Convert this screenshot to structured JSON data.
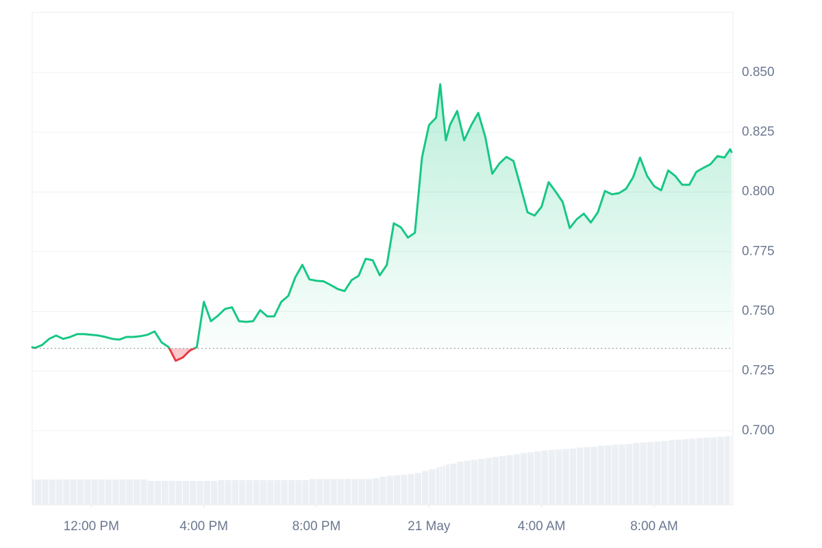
{
  "chart_data": {
    "type": "line",
    "color": "#16c784",
    "below_color": "#ea3943",
    "baseline": 0.7345,
    "grid": true,
    "x": [
      9.9,
      10,
      10.25,
      10.5,
      10.75,
      11,
      11.25,
      11.5,
      11.75,
      12,
      12.25,
      12.5,
      12.75,
      13,
      13.25,
      13.5,
      13.75,
      14,
      14.25,
      14.5,
      14.75,
      15,
      15.25,
      15.5,
      15.75,
      16,
      16.25,
      16.5,
      16.75,
      17,
      17.25,
      17.5,
      17.75,
      18,
      18.25,
      18.5,
      18.75,
      19,
      19.25,
      19.5,
      19.75,
      20,
      20.25,
      20.5,
      20.75,
      21,
      21.25,
      21.5,
      21.75,
      22,
      22.25,
      22.5,
      22.75,
      23,
      23.25,
      23.5,
      23.75,
      24,
      24.25,
      24.4,
      24.5,
      24.6,
      24.75,
      25,
      25.25,
      25.5,
      25.75,
      26,
      26.25,
      26.5,
      26.75,
      27,
      27.25,
      27.5,
      27.75,
      28,
      28.25,
      28.5,
      28.75,
      29,
      29.25,
      29.5,
      29.75,
      30,
      30.25,
      30.5,
      30.75,
      31,
      31.25,
      31.5,
      31.75,
      32,
      32.25,
      32.5,
      32.75,
      33,
      33.25,
      33.5,
      33.75,
      34,
      34.25,
      34.5,
      34.7,
      34.75
    ],
    "values": [
      0.735,
      0.7347,
      0.7359,
      0.7385,
      0.7399,
      0.7385,
      0.7393,
      0.7405,
      0.7405,
      0.7402,
      0.7399,
      0.7393,
      0.7385,
      0.7382,
      0.7393,
      0.7393,
      0.7396,
      0.7402,
      0.7416,
      0.737,
      0.735,
      0.7293,
      0.7307,
      0.7336,
      0.735,
      0.754,
      0.7459,
      0.7482,
      0.751,
      0.7517,
      0.7459,
      0.7456,
      0.7459,
      0.7505,
      0.7479,
      0.7479,
      0.754,
      0.7565,
      0.7643,
      0.7695,
      0.7634,
      0.7628,
      0.7626,
      0.7611,
      0.7594,
      0.7585,
      0.7631,
      0.7649,
      0.772,
      0.7714,
      0.7651,
      0.7694,
      0.7869,
      0.7852,
      0.7809,
      0.7829,
      0.8144,
      0.828,
      0.8311,
      0.8451,
      0.8328,
      0.8216,
      0.8282,
      0.8339,
      0.8216,
      0.8279,
      0.8331,
      0.823,
      0.8076,
      0.8119,
      0.8147,
      0.813,
      0.8024,
      0.7915,
      0.7901,
      0.7938,
      0.8041,
      0.8001,
      0.7958,
      0.7849,
      0.7886,
      0.7909,
      0.7872,
      0.7915,
      0.8004,
      0.799,
      0.7995,
      0.8013,
      0.8061,
      0.8144,
      0.8067,
      0.8024,
      0.8007,
      0.809,
      0.8067,
      0.803,
      0.803,
      0.8084,
      0.8101,
      0.8116,
      0.815,
      0.8144,
      0.8179,
      0.8167
    ],
    "volumes": [
      27,
      27,
      27,
      27,
      27,
      27,
      27,
      27,
      27,
      27,
      27,
      27,
      27,
      27,
      27,
      27,
      27,
      25.5,
      25.5,
      25.5,
      25.5,
      25.5,
      25.5,
      25.5,
      25.5,
      25.5,
      25.5,
      26.3,
      26.3,
      26.3,
      26.3,
      26.3,
      26.3,
      26.3,
      26.3,
      26.3,
      26.3,
      26.3,
      26.3,
      26.3,
      27.5,
      27.5,
      27.5,
      27.5,
      27.5,
      27.5,
      27.5,
      27.5,
      27.5,
      28.5,
      30,
      31,
      31.5,
      32,
      33,
      34,
      36,
      38,
      40,
      41,
      42,
      43,
      44,
      46,
      47,
      48,
      49,
      50,
      51,
      52,
      53,
      54,
      55,
      56,
      57,
      58,
      58.5,
      59,
      59.5,
      60,
      61,
      61.5,
      62,
      63,
      63.5,
      64,
      64.5,
      65,
      66,
      66.5,
      67,
      67.5,
      68,
      69,
      69.5,
      70,
      70.5,
      71,
      71.5,
      72,
      72.5,
      73,
      73,
      73
    ],
    "volume_color": "#eceff3",
    "volume_lim": [
      0,
      100
    ],
    "xlim": [
      9.9,
      34.8
    ],
    "xticks": [
      {
        "value": 12,
        "label": "12:00 PM"
      },
      {
        "value": 16,
        "label": "4:00 PM"
      },
      {
        "value": 20,
        "label": "8:00 PM"
      },
      {
        "value": 24,
        "label": "21 May"
      },
      {
        "value": 28,
        "label": "4:00 AM"
      },
      {
        "value": 32,
        "label": "8:00 AM"
      }
    ],
    "ylim": [
      0.669,
      0.8752
    ],
    "yticks": [
      {
        "value": 0.7,
        "label": "0.700"
      },
      {
        "value": 0.725,
        "label": "0.725"
      },
      {
        "value": 0.75,
        "label": "0.750"
      },
      {
        "value": 0.775,
        "label": "0.775"
      },
      {
        "value": 0.8,
        "label": "0.800"
      },
      {
        "value": 0.825,
        "label": "0.825"
      },
      {
        "value": 0.85,
        "label": "0.850"
      }
    ]
  }
}
